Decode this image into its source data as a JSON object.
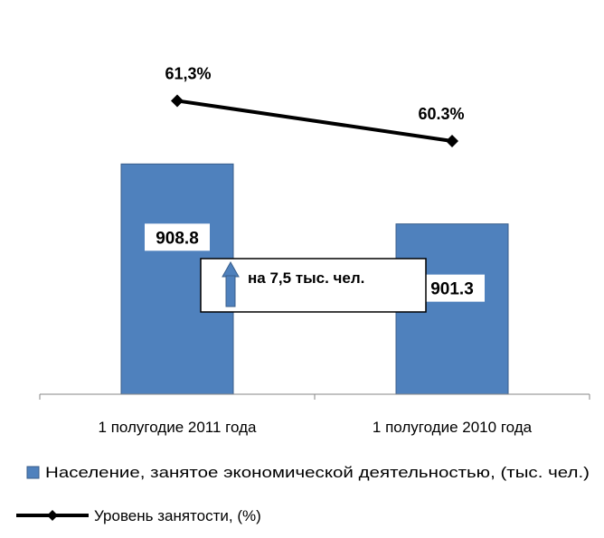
{
  "chart_data": {
    "type": "bar",
    "categories": [
      "1 полугодие 2011 года",
      "1 полугодие 2010 года"
    ],
    "series": [
      {
        "name": "Население, занятое экономической деятельностью, (тыс. чел.)",
        "kind": "bar",
        "values": [
          908.8,
          901.3
        ],
        "value_labels": [
          "908.8",
          "901.3"
        ],
        "color": "#4f81bd"
      },
      {
        "name": "Уровень занятости, (%)",
        "kind": "line",
        "values": [
          61.3,
          60.3
        ],
        "value_labels": [
          "61,3%",
          "60.3%"
        ],
        "color": "#000000"
      }
    ],
    "annotation": "на 7,5 тыс. чел.",
    "annotation_icon": "up-arrow-icon",
    "legend_position": "bottom",
    "grid": false
  }
}
